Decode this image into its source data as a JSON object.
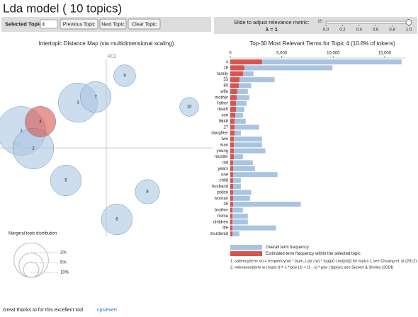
{
  "title": "Lda model ( 10 topics)",
  "controls": {
    "selected_label": "Selected Topic:",
    "selected_value": "4",
    "buttons": [
      "Previous Topic",
      "Next Topic",
      "Clear Topic"
    ],
    "slider_label": "Slide to adjust relevance metric:",
    "slider_note": "(2)",
    "lambda": "λ = 1",
    "slider_ticks": [
      {
        "value": 0,
        "label": "0.0"
      },
      {
        "value": 0.2,
        "label": "0.2"
      },
      {
        "value": 0.4,
        "label": "0.4"
      },
      {
        "value": 0.6,
        "label": "0.6"
      },
      {
        "value": 0.8,
        "label": "0.8"
      },
      {
        "value": 1,
        "label": "1.0"
      }
    ],
    "slider_value": 1
  },
  "chart_data": [
    {
      "type": "scatter",
      "title": "Intertopic Distance Map (via multidimensional scaling)",
      "x_label": "PC1",
      "y_label": "PC2",
      "categories": [
        "1",
        "2",
        "3",
        "4",
        "5",
        "6",
        "7",
        "8",
        "9",
        "10"
      ],
      "x": [
        -120,
        -103,
        -40,
        -93,
        -57,
        15,
        -15,
        58,
        26,
        117
      ],
      "y": [
        24,
        -1,
        64,
        37,
        -46,
        -101,
        72,
        -62,
        102,
        58
      ],
      "sizes": [
        20,
        14,
        13,
        8,
        8,
        8,
        8,
        5,
        4,
        3
      ],
      "colors": [
        "#aac6e2",
        "#aac6e2",
        "#aac6e2",
        "#d9534f",
        "#aac6e2",
        "#aac6e2",
        "#aac6e2",
        "#aac6e2",
        "#aac6e2",
        "#aac6e2"
      ],
      "xlim": [
        -150,
        150
      ],
      "ylim": [
        -125,
        125
      ],
      "size_legend": {
        "title": "Marginal topic distribution",
        "ticks": [
          {
            "value": 2,
            "label": "2%"
          },
          {
            "value": 5,
            "label": "5%"
          },
          {
            "value": 10,
            "label": "10%"
          }
        ]
      }
    },
    {
      "type": "bar",
      "orientation": "horizontal",
      "title": "Top-30 Most Relevant Terms for Topic 4 (10.8% of tokens)",
      "categories": [
        "s",
        "18",
        "family",
        "53",
        "80",
        "wife",
        "mother",
        "father",
        "death",
        "son",
        "9648",
        "27",
        "daughter",
        "two",
        "man",
        "young",
        "murder",
        "old",
        "years",
        "one",
        "child",
        "husband",
        "police",
        "woman",
        "35",
        "brother",
        "home",
        "children",
        "life",
        "murdered"
      ],
      "series": [
        {
          "name": "Overall term frequency",
          "color": "#a9c4e0",
          "values": [
            16650,
            9930,
            2260,
            4300,
            2050,
            1710,
            1850,
            1580,
            1370,
            1230,
            1500,
            2800,
            1030,
            3080,
            3080,
            3420,
            1230,
            2190,
            2400,
            4590,
            1030,
            1030,
            2050,
            1920,
            6850,
            1230,
            1710,
            1710,
            4450,
            890
          ]
        },
        {
          "name": "Estimated term frequency within the selected topic",
          "color": "#d9534f",
          "values": [
            3080,
            1370,
            1230,
            890,
            820,
            680,
            620,
            550,
            550,
            480,
            410,
            410,
            410,
            340,
            340,
            340,
            340,
            270,
            270,
            270,
            270,
            270,
            270,
            270,
            270,
            210,
            210,
            210,
            210,
            210
          ]
        }
      ],
      "xlim": [
        0,
        17000
      ],
      "xticks": [
        0,
        {
          "value": 5000,
          "label": "5,000"
        },
        {
          "value": 10000,
          "label": "10,000"
        },
        {
          "value": 15000,
          "label": "15,000"
        }
      ],
      "footnotes": [
        "1. saliency(term w) = frequency(w) * [sum_t p(t | w) * log(p(t | w)/p(t))] for topics t; see Chuang et. al (2012)",
        "2. relevance(term w | topic t) = λ * p(w | t) + (1 - λ) * p(w | t)/p(w); see Sievert & Shirley (2014)"
      ]
    }
  ],
  "footer": {
    "text": "Great thanks to for this excellent tool",
    "link": "cpsievert"
  }
}
